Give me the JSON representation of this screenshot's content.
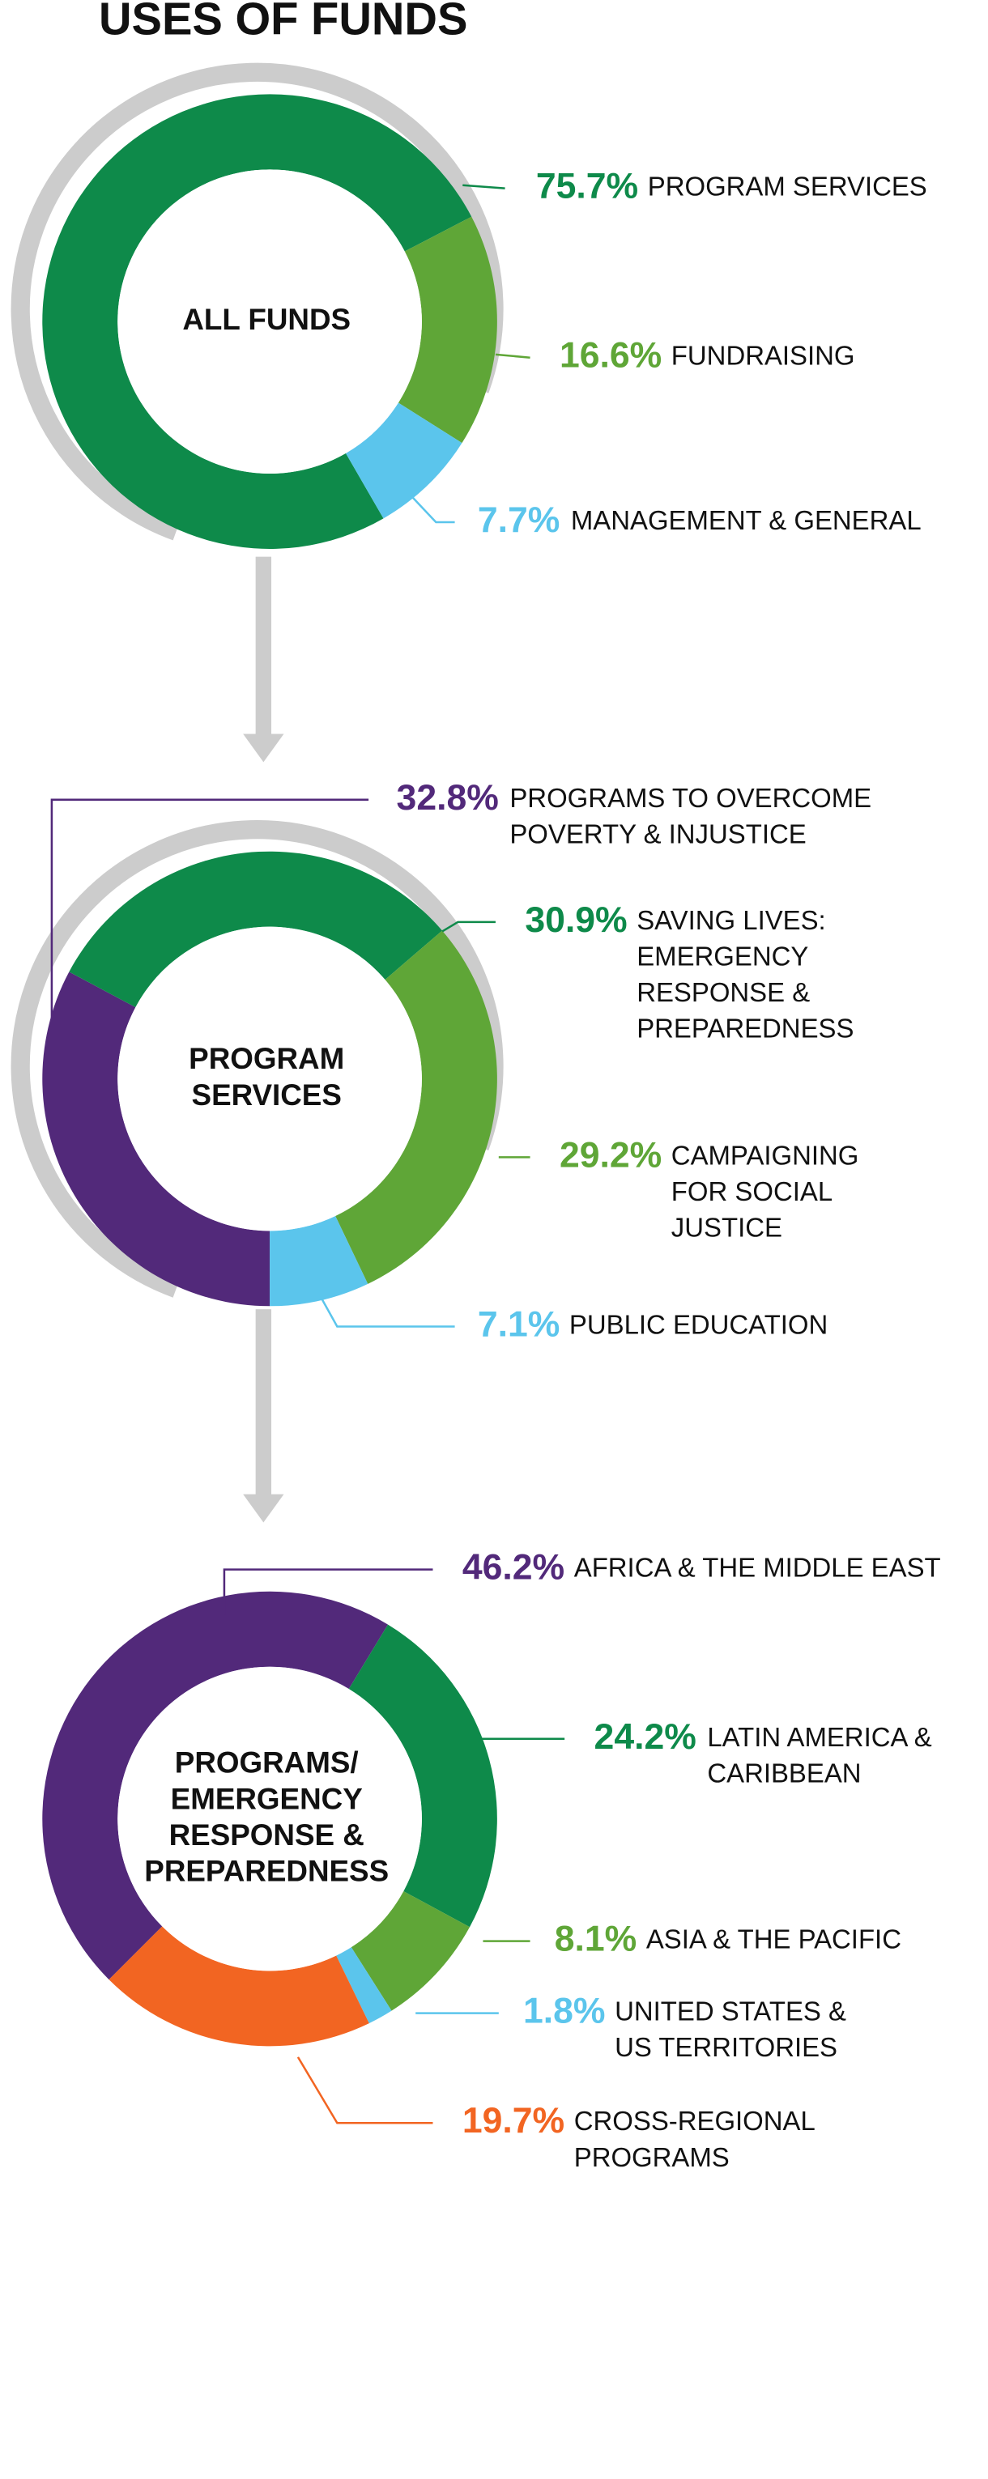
{
  "title": "USES OF FUNDS",
  "chart_data": [
    {
      "type": "donut",
      "title": "ALL FUNDS",
      "categories": [
        "PROGRAM SERVICES",
        "FUNDRAISING",
        "MANAGEMENT & GENERAL"
      ],
      "values": [
        75.7,
        16.6,
        7.7
      ],
      "value_labels": [
        "75.7%",
        "16.6%",
        "7.7%"
      ],
      "colors": [
        "#0e8a4a",
        "#5fa637",
        "#5bc5ec"
      ]
    },
    {
      "type": "donut",
      "title": "PROGRAM\nSERVICES",
      "categories": [
        "PROGRAMS TO OVERCOME\nPOVERTY & INJUSTICE",
        "SAVING LIVES:\nEMERGENCY\nRESPONSE &\nPREPAREDNESS",
        "CAMPAIGNING\nFOR SOCIAL\nJUSTICE",
        "PUBLIC EDUCATION"
      ],
      "values": [
        32.8,
        30.9,
        29.2,
        7.1
      ],
      "value_labels": [
        "32.8%",
        "30.9%",
        "29.2%",
        "7.1%"
      ],
      "colors": [
        "#52297a",
        "#0e8a4a",
        "#5fa637",
        "#5bc5ec"
      ]
    },
    {
      "type": "donut",
      "title": "PROGRAMS/\nEMERGENCY\nRESPONSE &\nPREPAREDNESS",
      "categories": [
        "AFRICA & THE MIDDLE EAST",
        "LATIN AMERICA &\nCARIBBEAN",
        "ASIA & THE PACIFIC",
        "UNITED STATES &\nUS TERRITORIES",
        "CROSS-REGIONAL\nPROGRAMS"
      ],
      "values": [
        46.2,
        24.2,
        8.1,
        1.8,
        19.7
      ],
      "value_labels": [
        "46.2%",
        "24.2%",
        "8.1%",
        "1.8%",
        "19.7%"
      ],
      "colors": [
        "#52297a",
        "#0e8a4a",
        "#5fa637",
        "#5bc5ec",
        "#f26522"
      ]
    }
  ]
}
